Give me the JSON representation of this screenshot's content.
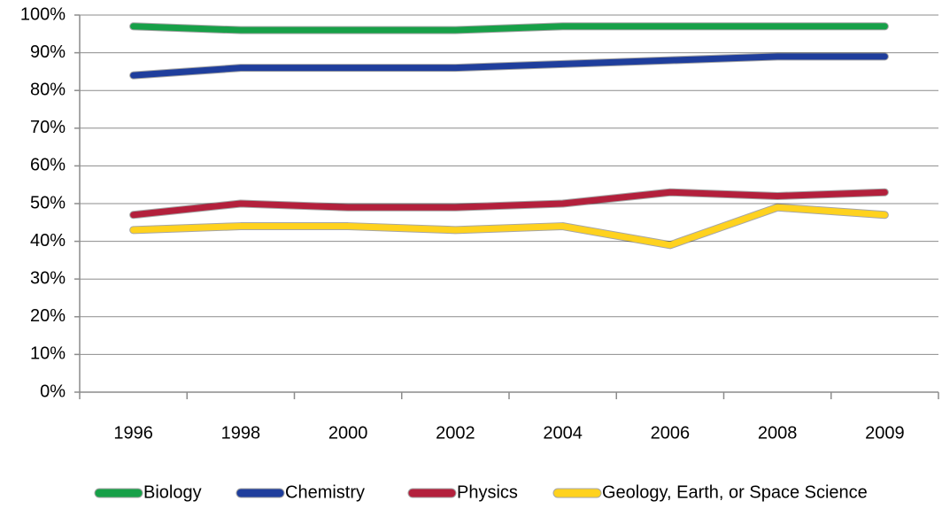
{
  "chart_data": {
    "type": "line",
    "categories": [
      "1996",
      "1998",
      "2000",
      "2002",
      "2004",
      "2006",
      "2008",
      "2009"
    ],
    "series": [
      {
        "name": "Biology",
        "color": "#17a048",
        "values": [
          97,
          96,
          96,
          96,
          97,
          97,
          97,
          97
        ]
      },
      {
        "name": "Chemistry",
        "color": "#1f3e9c",
        "values": [
          84,
          86,
          86,
          86,
          87,
          88,
          89,
          89
        ]
      },
      {
        "name": "Physics",
        "color": "#b3203c",
        "values": [
          47,
          50,
          49,
          49,
          50,
          53,
          52,
          53
        ]
      },
      {
        "name": "Geology, Earth, or Space Science",
        "color": "#ffd21e",
        "values": [
          43,
          44,
          44,
          43,
          44,
          39,
          49,
          47
        ]
      }
    ],
    "ylim": [
      0,
      100
    ],
    "yticks": [
      {
        "value": 0,
        "label": "0%"
      },
      {
        "value": 10,
        "label": "10%"
      },
      {
        "value": 20,
        "label": "20%"
      },
      {
        "value": 30,
        "label": "30%"
      },
      {
        "value": 40,
        "label": "40%"
      },
      {
        "value": 50,
        "label": "50%"
      },
      {
        "value": 60,
        "label": "60%"
      },
      {
        "value": 70,
        "label": "70%"
      },
      {
        "value": 80,
        "label": "80%"
      },
      {
        "value": 90,
        "label": "90%"
      },
      {
        "value": 100,
        "label": "100%"
      }
    ],
    "grid": true
  }
}
